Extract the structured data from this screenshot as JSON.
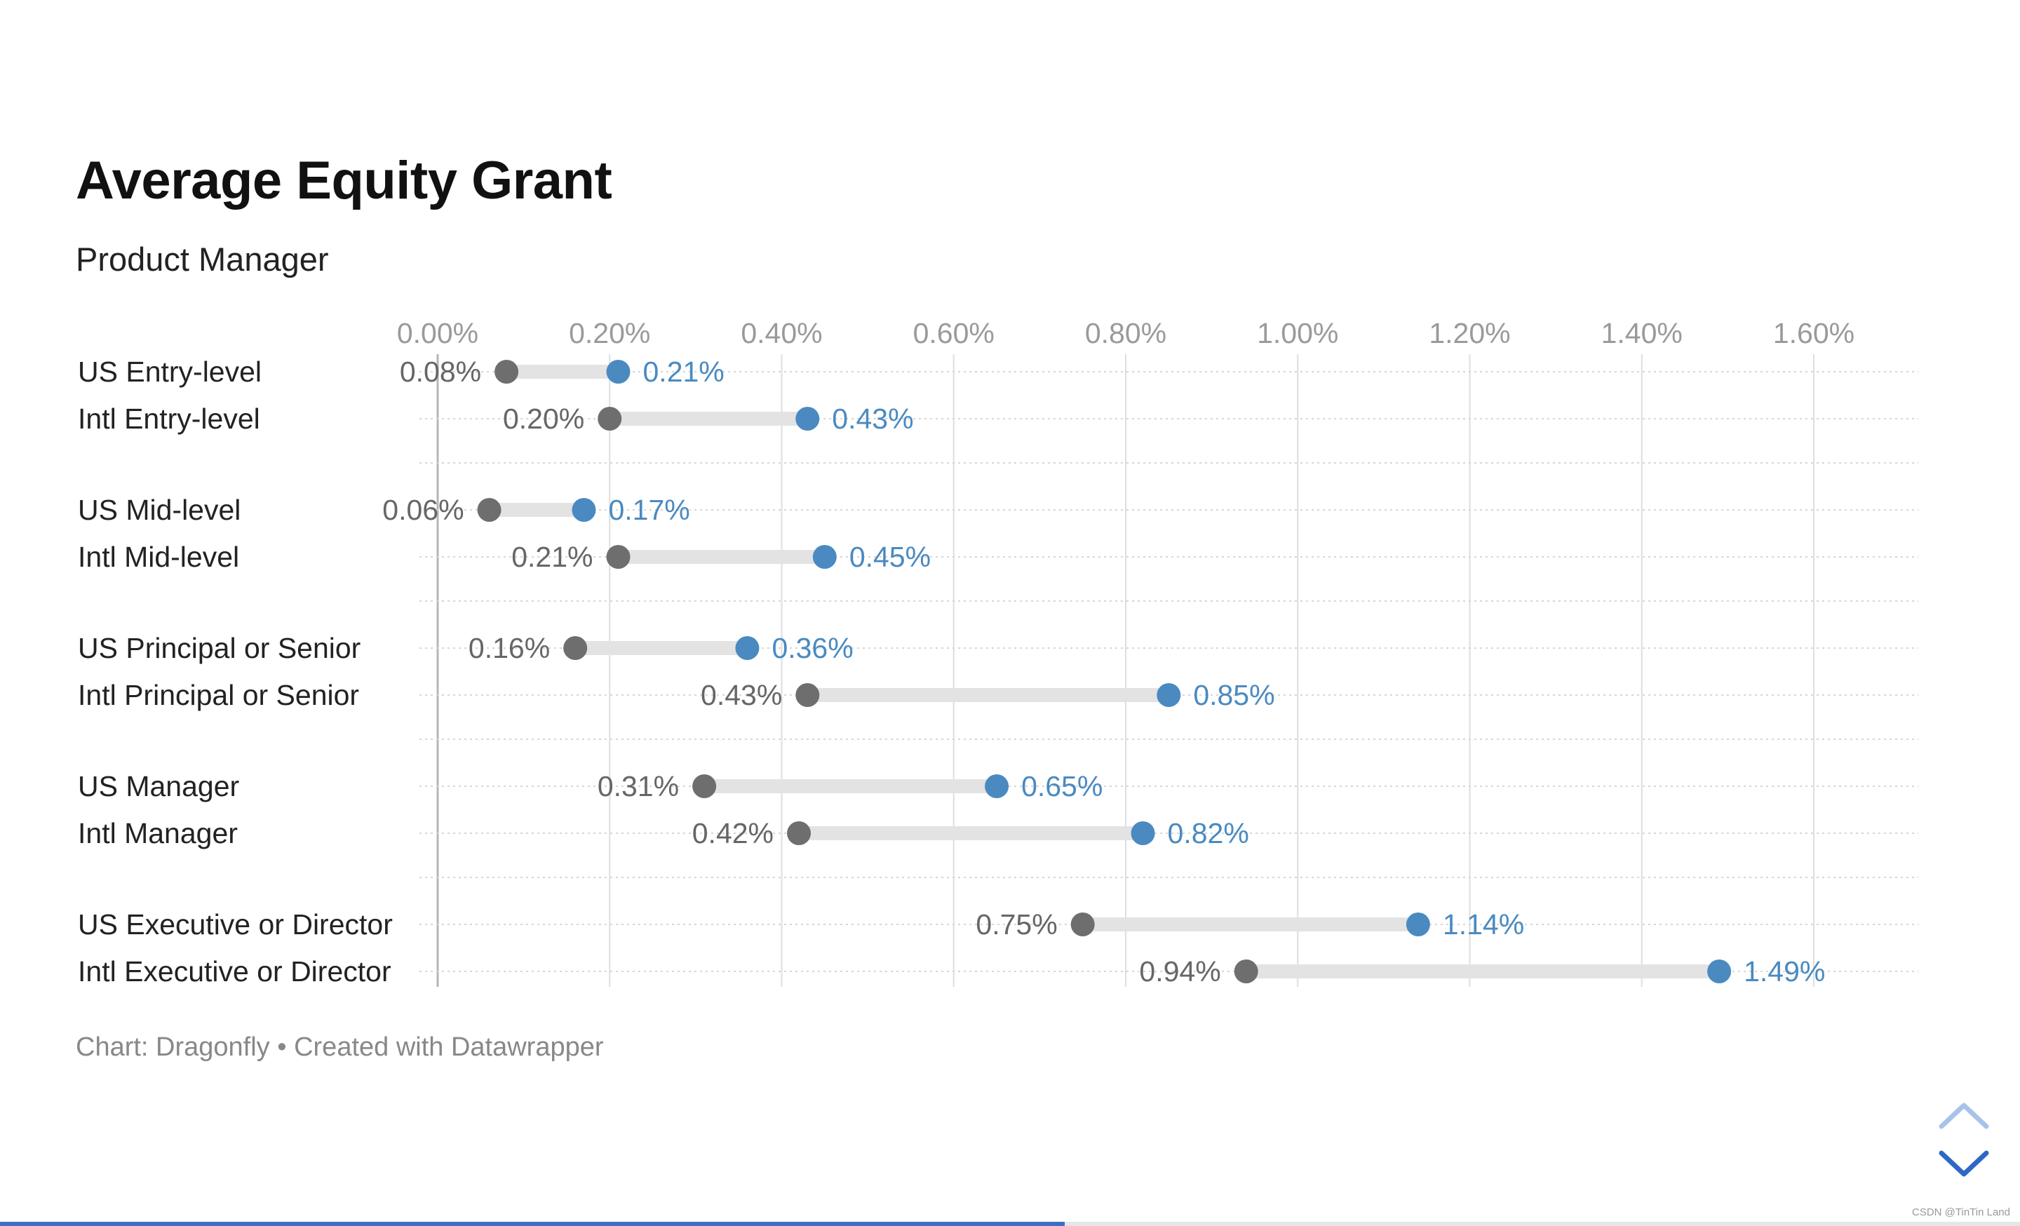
{
  "header": {
    "title": "Average Equity Grant",
    "subtitle": "Product Manager"
  },
  "footer": {
    "source": "Chart: Dragonfly • Created with Datawrapper"
  },
  "colors": {
    "low": "#6e6e6e",
    "high": "#4a8ac0",
    "bar": "#e3e3e3",
    "grid": "#dedede",
    "tick_text": "#9a9a9a",
    "category_text": "#222222",
    "value_low_text": "#666666"
  },
  "chart_data": {
    "type": "range-dot",
    "xlim": [
      0,
      1.6
    ],
    "x_unit": "%",
    "x_ticks": [
      "0.00%",
      "0.20%",
      "0.40%",
      "0.60%",
      "0.80%",
      "1.00%",
      "1.20%",
      "1.40%",
      "1.60%"
    ],
    "grid": true,
    "groups": [
      {
        "rows": [
          {
            "label": "US Entry-level",
            "low": 0.08,
            "high": 0.21,
            "low_label": "0.08%",
            "high_label": "0.21%"
          },
          {
            "label": "Intl Entry-level",
            "low": 0.2,
            "high": 0.43,
            "low_label": "0.20%",
            "high_label": "0.43%"
          }
        ]
      },
      {
        "rows": [
          {
            "label": "US Mid-level",
            "low": 0.06,
            "high": 0.17,
            "low_label": "0.06%",
            "high_label": "0.17%"
          },
          {
            "label": "Intl Mid-level",
            "low": 0.21,
            "high": 0.45,
            "low_label": "0.21%",
            "high_label": "0.45%"
          }
        ]
      },
      {
        "rows": [
          {
            "label": "US Principal or Senior",
            "low": 0.16,
            "high": 0.36,
            "low_label": "0.16%",
            "high_label": "0.36%"
          },
          {
            "label": "Intl Principal or Senior",
            "low": 0.43,
            "high": 0.85,
            "low_label": "0.43%",
            "high_label": "0.85%"
          }
        ]
      },
      {
        "rows": [
          {
            "label": "US Manager",
            "low": 0.31,
            "high": 0.65,
            "low_label": "0.31%",
            "high_label": "0.65%"
          },
          {
            "label": "Intl Manager",
            "low": 0.42,
            "high": 0.82,
            "low_label": "0.42%",
            "high_label": "0.82%"
          }
        ]
      },
      {
        "rows": [
          {
            "label": "US Executive or Director",
            "low": 0.75,
            "high": 1.14,
            "low_label": "0.75%",
            "high_label": "1.14%"
          },
          {
            "label": "Intl Executive or Director",
            "low": 0.94,
            "high": 1.49,
            "low_label": "0.94%",
            "high_label": "1.49%"
          }
        ]
      }
    ]
  },
  "navigation": {
    "up_icon": "chevron-up-icon",
    "down_icon": "chevron-down-icon"
  },
  "watermark": "CSDN @TinTin Land",
  "scroll_progress": 0.527
}
